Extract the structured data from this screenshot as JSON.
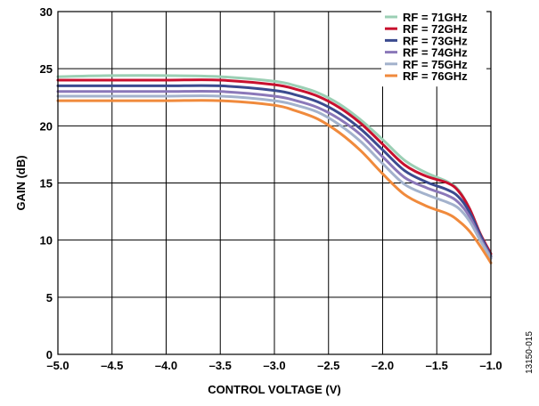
{
  "chart_data": {
    "type": "line",
    "title": "",
    "xlabel": "CONTROL VOLTAGE (V)",
    "ylabel": "GAIN (dB)",
    "xlim": [
      -5.0,
      -1.0
    ],
    "ylim": [
      0,
      30
    ],
    "x_ticks": [
      -5.0,
      -4.5,
      -4.0,
      -3.5,
      -3.0,
      -2.5,
      -2.0,
      -1.5,
      -1.0
    ],
    "x_tick_labels": [
      "–5.0",
      "–4.5",
      "–4.0",
      "–3.5",
      "–3.0",
      "–2.5",
      "–2.0",
      "–1.5",
      "–1.0"
    ],
    "y_ticks": [
      0,
      5,
      10,
      15,
      20,
      25,
      30
    ],
    "y_tick_labels": [
      "0",
      "5",
      "10",
      "15",
      "20",
      "25",
      "30"
    ],
    "grid": true,
    "legend_position": "top-right",
    "figure_id": "13150-015",
    "series": [
      {
        "name": "RF = 71GHz",
        "color": "#9bcfb4",
        "x": [
          -5.0,
          -4.5,
          -4.0,
          -3.5,
          -3.0,
          -2.8,
          -2.6,
          -2.4,
          -2.2,
          -2.0,
          -1.8,
          -1.6,
          -1.4,
          -1.3,
          -1.2,
          -1.1,
          -1.0
        ],
        "y": [
          24.3,
          24.4,
          24.4,
          24.3,
          23.9,
          23.5,
          22.9,
          21.9,
          20.5,
          18.8,
          17.0,
          15.9,
          15.1,
          14.4,
          12.8,
          10.6,
          8.5
        ]
      },
      {
        "name": "RF = 72GHz",
        "color": "#c8102e",
        "x": [
          -5.0,
          -4.5,
          -4.0,
          -3.5,
          -3.0,
          -2.8,
          -2.6,
          -2.4,
          -2.2,
          -2.0,
          -1.8,
          -1.6,
          -1.4,
          -1.3,
          -1.2,
          -1.1,
          -1.0
        ],
        "y": [
          24.0,
          24.0,
          24.0,
          24.0,
          23.6,
          23.2,
          22.6,
          21.6,
          20.2,
          18.4,
          16.6,
          15.6,
          15.0,
          14.3,
          12.8,
          10.6,
          8.8
        ]
      },
      {
        "name": "RF = 73GHz",
        "color": "#3b4b8f",
        "x": [
          -5.0,
          -4.5,
          -4.0,
          -3.5,
          -3.0,
          -2.8,
          -2.6,
          -2.4,
          -2.2,
          -2.0,
          -1.8,
          -1.6,
          -1.4,
          -1.3,
          -1.2,
          -1.1,
          -1.0
        ],
        "y": [
          23.5,
          23.5,
          23.5,
          23.5,
          23.1,
          22.7,
          22.1,
          21.1,
          19.7,
          17.9,
          16.1,
          15.1,
          14.4,
          13.8,
          12.5,
          10.5,
          8.6
        ]
      },
      {
        "name": "RF = 74GHz",
        "color": "#8b78b9",
        "x": [
          -5.0,
          -4.5,
          -4.0,
          -3.5,
          -3.0,
          -2.8,
          -2.6,
          -2.4,
          -2.2,
          -2.0,
          -1.8,
          -1.6,
          -1.4,
          -1.3,
          -1.2,
          -1.1,
          -1.0
        ],
        "y": [
          23.0,
          23.0,
          23.0,
          23.0,
          22.6,
          22.2,
          21.6,
          20.6,
          19.2,
          17.3,
          15.5,
          14.6,
          13.9,
          13.3,
          12.1,
          10.2,
          8.5
        ]
      },
      {
        "name": "RF = 75GHz",
        "color": "#a3b2cc",
        "x": [
          -5.0,
          -4.5,
          -4.0,
          -3.5,
          -3.0,
          -2.8,
          -2.6,
          -2.4,
          -2.2,
          -2.0,
          -1.8,
          -1.6,
          -1.4,
          -1.3,
          -1.2,
          -1.1,
          -1.0
        ],
        "y": [
          22.6,
          22.6,
          22.6,
          22.6,
          22.2,
          21.8,
          21.2,
          20.1,
          18.6,
          16.7,
          14.9,
          14.0,
          13.3,
          12.8,
          11.7,
          10.0,
          8.4
        ]
      },
      {
        "name": "RF = 76GHz",
        "color": "#f08a3c",
        "x": [
          -5.0,
          -4.5,
          -4.0,
          -3.5,
          -3.0,
          -2.8,
          -2.6,
          -2.4,
          -2.2,
          -2.0,
          -1.8,
          -1.6,
          -1.4,
          -1.3,
          -1.2,
          -1.1,
          -1.0
        ],
        "y": [
          22.2,
          22.2,
          22.2,
          22.2,
          21.8,
          21.3,
          20.6,
          19.4,
          17.8,
          15.8,
          14.0,
          13.0,
          12.3,
          11.7,
          10.8,
          9.5,
          8.0
        ]
      }
    ]
  }
}
